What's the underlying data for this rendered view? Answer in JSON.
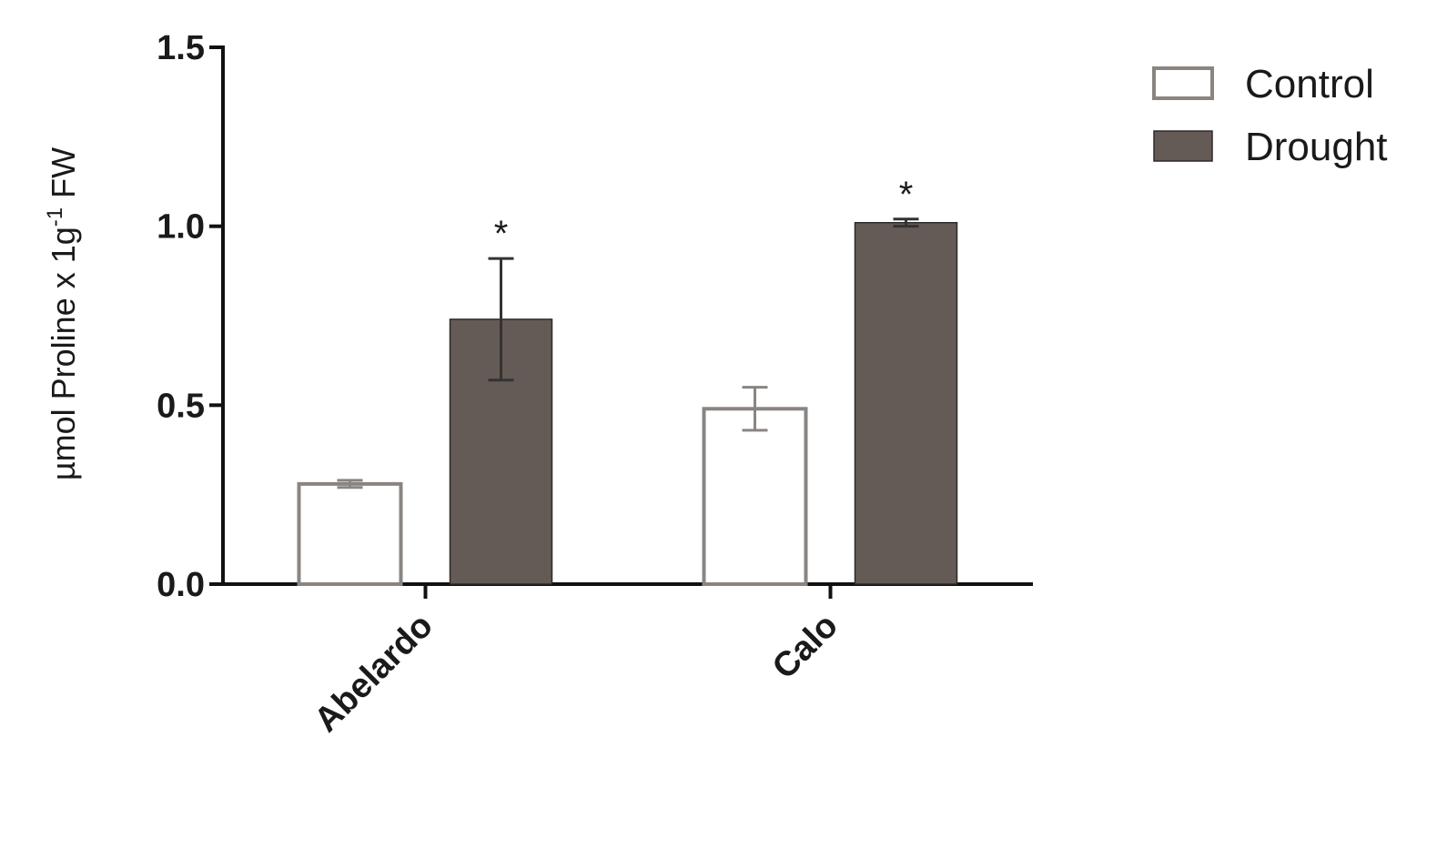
{
  "chart_data": {
    "type": "bar",
    "y_label": "µmol Proline x 1g",
    "y_label_superscript": "-1",
    "y_label_suffix": " FW",
    "categories": [
      "Abelardo",
      "Calo"
    ],
    "series": [
      {
        "name": "Control",
        "color": "#ffffff",
        "edge_color": "#8a8581",
        "values": [
          0.28,
          0.49
        ],
        "errors": [
          0.01,
          0.06
        ]
      },
      {
        "name": "Drought",
        "color": "#645b56",
        "edge_color": "#2e2a28",
        "values": [
          0.74,
          1.01
        ],
        "errors": [
          0.17,
          0.01
        ],
        "annotations": [
          "*",
          "*"
        ]
      }
    ],
    "ylim": [
      0,
      1.5
    ],
    "yticks": [
      {
        "value": 0,
        "label": "0.0"
      },
      0.5,
      {
        "value": 1,
        "label": "1.0"
      },
      1.5
    ],
    "grid": false,
    "legend": "upper right"
  }
}
